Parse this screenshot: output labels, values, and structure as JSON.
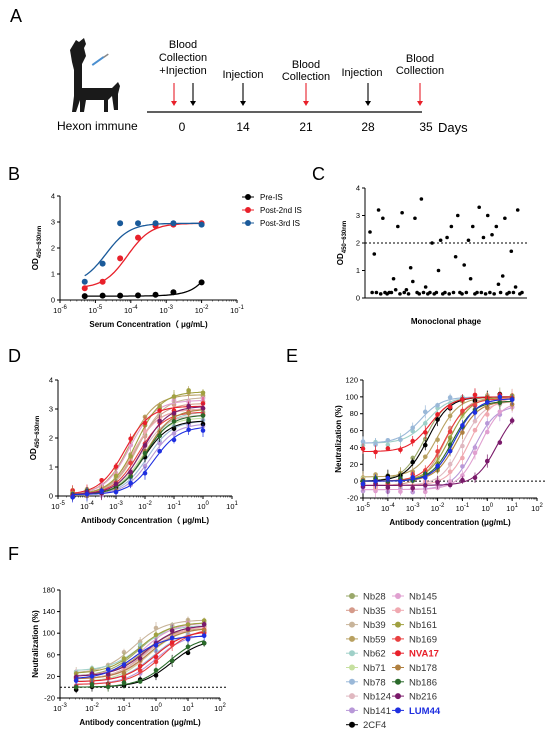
{
  "panel_letters": [
    "A",
    "B",
    "C",
    "D",
    "E",
    "F"
  ],
  "timeline": {
    "label": "Hexon immune",
    "unit": "Days",
    "ticks": [
      "0",
      "14",
      "21",
      "28",
      "35"
    ],
    "events": [
      {
        "label": "Blood Collection",
        "label2": "+Injection"
      },
      {
        "label": "Injection"
      },
      {
        "label": "Blood",
        "label2": "Collection"
      },
      {
        "label": "Injection"
      },
      {
        "label": "Blood",
        "label2": "Collection"
      }
    ]
  },
  "colors": {
    "black": "#000000",
    "red": "#e8202a",
    "blue": "#1a5a9a",
    "purple": "#7a1a6a",
    "dotted": "#000000"
  },
  "chart_data": [
    {
      "panel": "B",
      "type": "line",
      "xlabel": "Serum Concentration（ μg/mL)",
      "ylabel": "OD450~630nm",
      "xscale": "log",
      "xlim": [
        1e-06,
        0.1
      ],
      "ylim": [
        0,
        4
      ],
      "xticks": [
        "10-6",
        "10-5",
        "10-4",
        "10-3",
        "10-2",
        "10-1"
      ],
      "yticks": [
        "0",
        "1",
        "2",
        "3",
        "4"
      ],
      "legend_position": "right",
      "series": [
        {
          "name": "Pre-IS",
          "color": "#000000",
          "x": [
            5e-06,
            1.6e-05,
            5e-05,
            0.00016,
            0.0005,
            0.0016,
            0.01
          ],
          "y": [
            0.15,
            0.17,
            0.17,
            0.18,
            0.2,
            0.3,
            0.68
          ]
        },
        {
          "name": "Post-2nd IS",
          "color": "#e8202a",
          "x": [
            5e-06,
            1.6e-05,
            5e-05,
            0.00016,
            0.0005,
            0.0016,
            0.01
          ],
          "y": [
            0.45,
            0.7,
            1.6,
            2.4,
            2.85,
            2.9,
            2.95
          ]
        },
        {
          "name": "Post-3rd IS",
          "color": "#1a5a9a",
          "x": [
            5e-06,
            1.6e-05,
            5e-05,
            0.00016,
            0.0005,
            0.0016,
            0.01
          ],
          "y": [
            0.7,
            1.4,
            2.95,
            2.95,
            2.95,
            2.95,
            2.9
          ]
        }
      ]
    },
    {
      "panel": "C",
      "type": "scatter",
      "xlabel": "Monoclonal phage",
      "ylabel": "OD450~630nm",
      "ylim": [
        0,
        4
      ],
      "yticks": [
        "0",
        "1",
        "2",
        "3",
        "4"
      ],
      "threshold": 2,
      "series": [
        {
          "values": [
            2.4,
            0.2,
            1.6,
            0.2,
            3.2,
            0.15,
            2.9,
            0.2,
            0.15,
            0.2,
            0.2,
            0.7,
            0.3,
            2.6,
            0.15,
            3.1,
            0.2,
            0.3,
            0.15,
            1.1,
            0.6,
            2.9,
            0.2,
            0.15,
            3.6,
            0.2,
            0.4,
            0.15,
            0.2,
            2.0,
            0.15,
            0.2,
            1.0,
            2.1,
            0.15,
            0.2,
            2.2,
            0.15,
            2.6,
            0.2,
            1.5,
            3.0,
            0.2,
            0.15,
            1.2,
            0.2,
            2.1,
            0.7,
            2.6,
            0.15,
            0.2,
            3.3,
            0.2,
            2.2,
            0.15,
            3.0,
            0.2,
            2.3,
            0.15,
            2.6,
            0.5,
            0.2,
            0.8,
            2.9,
            0.15,
            0.2,
            1.7,
            0.2,
            0.4,
            3.2,
            0.15,
            0.2
          ]
        }
      ]
    },
    {
      "panel": "D",
      "type": "line",
      "xlabel": "Antibody Concentration（ μg/mL)",
      "ylabel": "OD450~630nm",
      "xscale": "log",
      "xlim": [
        1e-05,
        10
      ],
      "ylim": [
        0,
        4
      ],
      "xticks": [
        "10-5",
        "10-4",
        "10-3",
        "10-2",
        "10-1",
        "100",
        "101"
      ],
      "yticks": [
        "0",
        "1",
        "2",
        "3",
        "4"
      ],
      "x": [
        3.2e-05,
        0.0001,
        0.00032,
        0.001,
        0.0032,
        0.01,
        0.032,
        0.1,
        0.32,
        1
      ],
      "series": [
        {
          "name": "Nb28",
          "ec50": 0.004,
          "top": 3.0
        },
        {
          "name": "Nb35",
          "ec50": 0.005,
          "top": 3.2
        },
        {
          "name": "Nb39",
          "ec50": 0.006,
          "top": 3.4
        },
        {
          "name": "Nb59",
          "ec50": 0.003,
          "top": 3.5
        },
        {
          "name": "Nb62",
          "ec50": 0.01,
          "top": 2.9
        },
        {
          "name": "Nb71",
          "ec50": 0.008,
          "top": 2.7
        },
        {
          "name": "Nb78",
          "ec50": 0.012,
          "top": 2.6
        },
        {
          "name": "Nb124",
          "ec50": 0.007,
          "top": 2.8
        },
        {
          "name": "Nb141",
          "ec50": 0.015,
          "top": 2.5
        },
        {
          "name": "2CF4",
          "ec50": 0.009,
          "top": 2.6
        },
        {
          "name": "Nb145",
          "ec50": 0.003,
          "top": 3.3
        },
        {
          "name": "Nb151",
          "ec50": 0.004,
          "top": 3.0
        },
        {
          "name": "Nb161",
          "ec50": 0.005,
          "top": 3.6
        },
        {
          "name": "Nb169",
          "ec50": 0.006,
          "top": 2.9
        },
        {
          "name": "NVA17",
          "ec50": 0.002,
          "top": 3.1
        },
        {
          "name": "Nb178",
          "ec50": 0.011,
          "top": 3.0
        },
        {
          "name": "Nb186",
          "ec50": 0.01,
          "top": 2.8
        },
        {
          "name": "Nb216",
          "ec50": 0.008,
          "top": 3.1
        },
        {
          "name": "LUM44",
          "ec50": 0.02,
          "top": 2.4
        }
      ]
    },
    {
      "panel": "E",
      "type": "line",
      "xlabel": "Antibody concentration (μg/mL)",
      "ylabel": "Neutralization (%)",
      "xscale": "log",
      "xlim": [
        1e-05,
        100
      ],
      "ylim": [
        -20,
        120
      ],
      "xticks": [
        "10-5",
        "10-4",
        "10-3",
        "10-2",
        "10-1",
        "100",
        "101",
        "102"
      ],
      "yticks": [
        "-20",
        "0",
        "20",
        "40",
        "60",
        "80",
        "100",
        "120"
      ],
      "x": [
        1e-05,
        3.2e-05,
        0.0001,
        0.00032,
        0.001,
        0.0032,
        0.01,
        0.032,
        0.1,
        0.32,
        1,
        3.2,
        10
      ],
      "series": [
        {
          "name": "Nb28",
          "ec50": 0.003,
          "bottom": 0,
          "top": 100
        },
        {
          "name": "Nb35",
          "ec50": 0.02,
          "bottom": -5,
          "top": 100
        },
        {
          "name": "Nb39",
          "ec50": 0.05,
          "bottom": 0,
          "top": 98
        },
        {
          "name": "Nb59",
          "ec50": 0.01,
          "bottom": 5,
          "top": 100
        },
        {
          "name": "Nb62",
          "ec50": 0.004,
          "bottom": 45,
          "top": 100
        },
        {
          "name": "Nb71",
          "ec50": 0.03,
          "bottom": 0,
          "top": 100
        },
        {
          "name": "Nb78",
          "ec50": 0.002,
          "bottom": 45,
          "top": 100
        },
        {
          "name": "Nb124",
          "ec50": 0.1,
          "bottom": -5,
          "top": 95
        },
        {
          "name": "Nb141",
          "ec50": 0.3,
          "bottom": -10,
          "top": 90
        },
        {
          "name": "2CF4",
          "ec50": 0.004,
          "bottom": 0,
          "top": 100
        },
        {
          "name": "Nb145",
          "ec50": 0.5,
          "bottom": -10,
          "top": 95
        },
        {
          "name": "Nb151",
          "ec50": 0.2,
          "bottom": -5,
          "top": 100
        },
        {
          "name": "Nb161",
          "ec50": 0.03,
          "bottom": 0,
          "top": 100
        },
        {
          "name": "Nb169",
          "ec50": 0.02,
          "bottom": 0,
          "top": 98
        },
        {
          "name": "NVA17",
          "ec50": 0.005,
          "bottom": 35,
          "top": 100
        },
        {
          "name": "Nb178",
          "ec50": 0.06,
          "bottom": 0,
          "top": 95
        },
        {
          "name": "Nb186",
          "ec50": 0.04,
          "bottom": 0,
          "top": 95
        },
        {
          "name": "Nb216",
          "ec50": 2.5,
          "bottom": -5,
          "top": 90
        },
        {
          "name": "LUM44",
          "ec50": 0.05,
          "bottom": 0,
          "top": 98
        }
      ]
    },
    {
      "panel": "F",
      "type": "line",
      "xlabel": "Antibody concentration (μg/mL)",
      "ylabel": "Neutralization (%)",
      "xscale": "log",
      "xlim": [
        0.001,
        100
      ],
      "ylim": [
        -20,
        180
      ],
      "xticks": [
        "10-3",
        "10-2",
        "10-1",
        "100",
        "101",
        "102"
      ],
      "yticks": [
        "-20",
        "20",
        "60",
        "100",
        "140",
        "180"
      ],
      "x": [
        0.0032,
        0.01,
        0.032,
        0.1,
        0.32,
        1,
        3.2,
        10,
        32
      ],
      "series": [
        {
          "name": "Nb28",
          "ec50": 0.3,
          "bottom": 20,
          "top": 120
        },
        {
          "name": "Nb35",
          "ec50": 0.5,
          "bottom": 15,
          "top": 115
        },
        {
          "name": "Nb39",
          "ec50": 0.2,
          "bottom": 25,
          "top": 125
        },
        {
          "name": "Nb59",
          "ec50": 0.4,
          "bottom": 20,
          "top": 110
        },
        {
          "name": "Nb62",
          "ec50": 0.3,
          "bottom": 30,
          "top": 115
        },
        {
          "name": "Nb71",
          "ec50": 0.6,
          "bottom": 10,
          "top": 110
        },
        {
          "name": "Nb78",
          "ec50": 0.8,
          "bottom": 10,
          "top": 105
        },
        {
          "name": "Nb124",
          "ec50": 0.5,
          "bottom": 15,
          "top": 110
        },
        {
          "name": "Nb141",
          "ec50": 1.0,
          "bottom": 5,
          "top": 100
        },
        {
          "name": "2CF4",
          "ec50": 3.0,
          "bottom": 0,
          "top": 90
        },
        {
          "name": "Nb145",
          "ec50": 0.4,
          "bottom": 20,
          "top": 120
        },
        {
          "name": "Nb151",
          "ec50": 0.7,
          "bottom": 15,
          "top": 115
        },
        {
          "name": "Nb161",
          "ec50": 0.3,
          "bottom": 25,
          "top": 120
        },
        {
          "name": "Nb169",
          "ec50": 1.5,
          "bottom": 5,
          "top": 110
        },
        {
          "name": "NVA17",
          "ec50": 0.9,
          "bottom": 10,
          "top": 105
        },
        {
          "name": "Nb178",
          "ec50": 0.6,
          "bottom": 15,
          "top": 110
        },
        {
          "name": "Nb186",
          "ec50": 2.5,
          "bottom": 0,
          "top": 95
        },
        {
          "name": "Nb216",
          "ec50": 0.5,
          "bottom": 20,
          "top": 115
        },
        {
          "name": "LUM44",
          "ec50": 0.2,
          "bottom": 15,
          "top": 95
        }
      ]
    }
  ],
  "legend_nb": [
    {
      "name": "Nb28",
      "color": "#9aa86a",
      "bold": false
    },
    {
      "name": "Nb35",
      "color": "#d59a8a",
      "bold": false
    },
    {
      "name": "Nb39",
      "color": "#c8b49a",
      "bold": false
    },
    {
      "name": "Nb59",
      "color": "#b8a060",
      "bold": false
    },
    {
      "name": "Nb62",
      "color": "#9fd0c8",
      "bold": false
    },
    {
      "name": "Nb71",
      "color": "#c6e0a0",
      "bold": false
    },
    {
      "name": "Nb78",
      "color": "#9ab8d8",
      "bold": false
    },
    {
      "name": "Nb124",
      "color": "#e0b8c0",
      "bold": false
    },
    {
      "name": "Nb141",
      "color": "#b898d8",
      "bold": false
    },
    {
      "name": "2CF4",
      "color": "#000000",
      "bold": false
    },
    {
      "name": "Nb145",
      "color": "#e0a0d0",
      "bold": false
    },
    {
      "name": "Nb151",
      "color": "#f0a8b0",
      "bold": false
    },
    {
      "name": "Nb161",
      "color": "#a0a040",
      "bold": false
    },
    {
      "name": "Nb169",
      "color": "#e84040",
      "bold": false
    },
    {
      "name": "NVA17",
      "color": "#e8202a",
      "bold": true
    },
    {
      "name": "Nb178",
      "color": "#b08040",
      "bold": false
    },
    {
      "name": "Nb186",
      "color": "#2a6a2a",
      "bold": false
    },
    {
      "name": "Nb216",
      "color": "#7a1a6a",
      "bold": false
    },
    {
      "name": "LUM44",
      "color": "#1f2fe0",
      "bold": true
    }
  ]
}
